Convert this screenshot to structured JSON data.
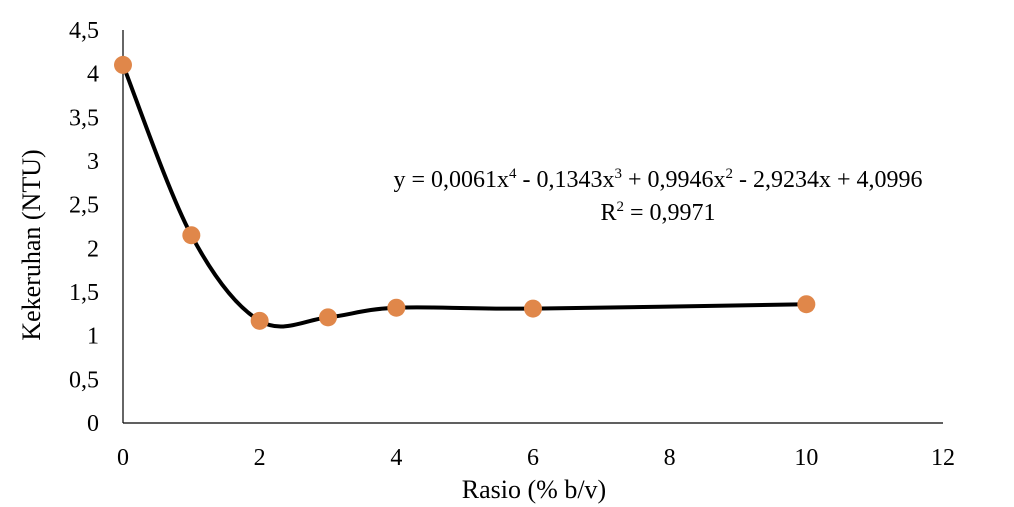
{
  "chart_data": {
    "type": "scatter",
    "title": "",
    "xlabel": "Rasio (% b/v)",
    "ylabel": "Kekeruhan (NTU)",
    "xlim": [
      0,
      12
    ],
    "ylim": [
      0,
      4.5
    ],
    "x_ticks": [
      0,
      2,
      4,
      6,
      8,
      10,
      12
    ],
    "y_ticks": [
      0,
      0.5,
      1,
      1.5,
      2,
      2.5,
      3,
      3.5,
      4,
      4.5
    ],
    "x_tick_labels": [
      "0",
      "2",
      "4",
      "6",
      "8",
      "10",
      "12"
    ],
    "y_tick_labels": [
      "0",
      "0,5",
      "1",
      "1,5",
      "2",
      "2,5",
      "3",
      "3,5",
      "4",
      "4,5"
    ],
    "grid": false,
    "legend": "none",
    "series": [
      {
        "x": [
          0,
          1,
          2,
          3,
          4,
          6,
          10
        ],
        "y": [
          4.1,
          2.15,
          1.17,
          1.21,
          1.32,
          1.31,
          1.36
        ],
        "marker_color": "#E0874A",
        "curve_color": "#000000"
      }
    ],
    "trendline": {
      "type": "polynomial",
      "order": 4,
      "equation_label": {
        "prefix": "y = 0,0061x",
        "p1": "4",
        "t1": " - 0,1343x",
        "p2": "3",
        "t2": " + 0,9946x",
        "p3": "2",
        "t3": " - 2,9234x + 4,0996"
      },
      "r2_label": {
        "prefix": "R",
        "sup": "2",
        "suffix": " = 0,9971"
      }
    }
  }
}
